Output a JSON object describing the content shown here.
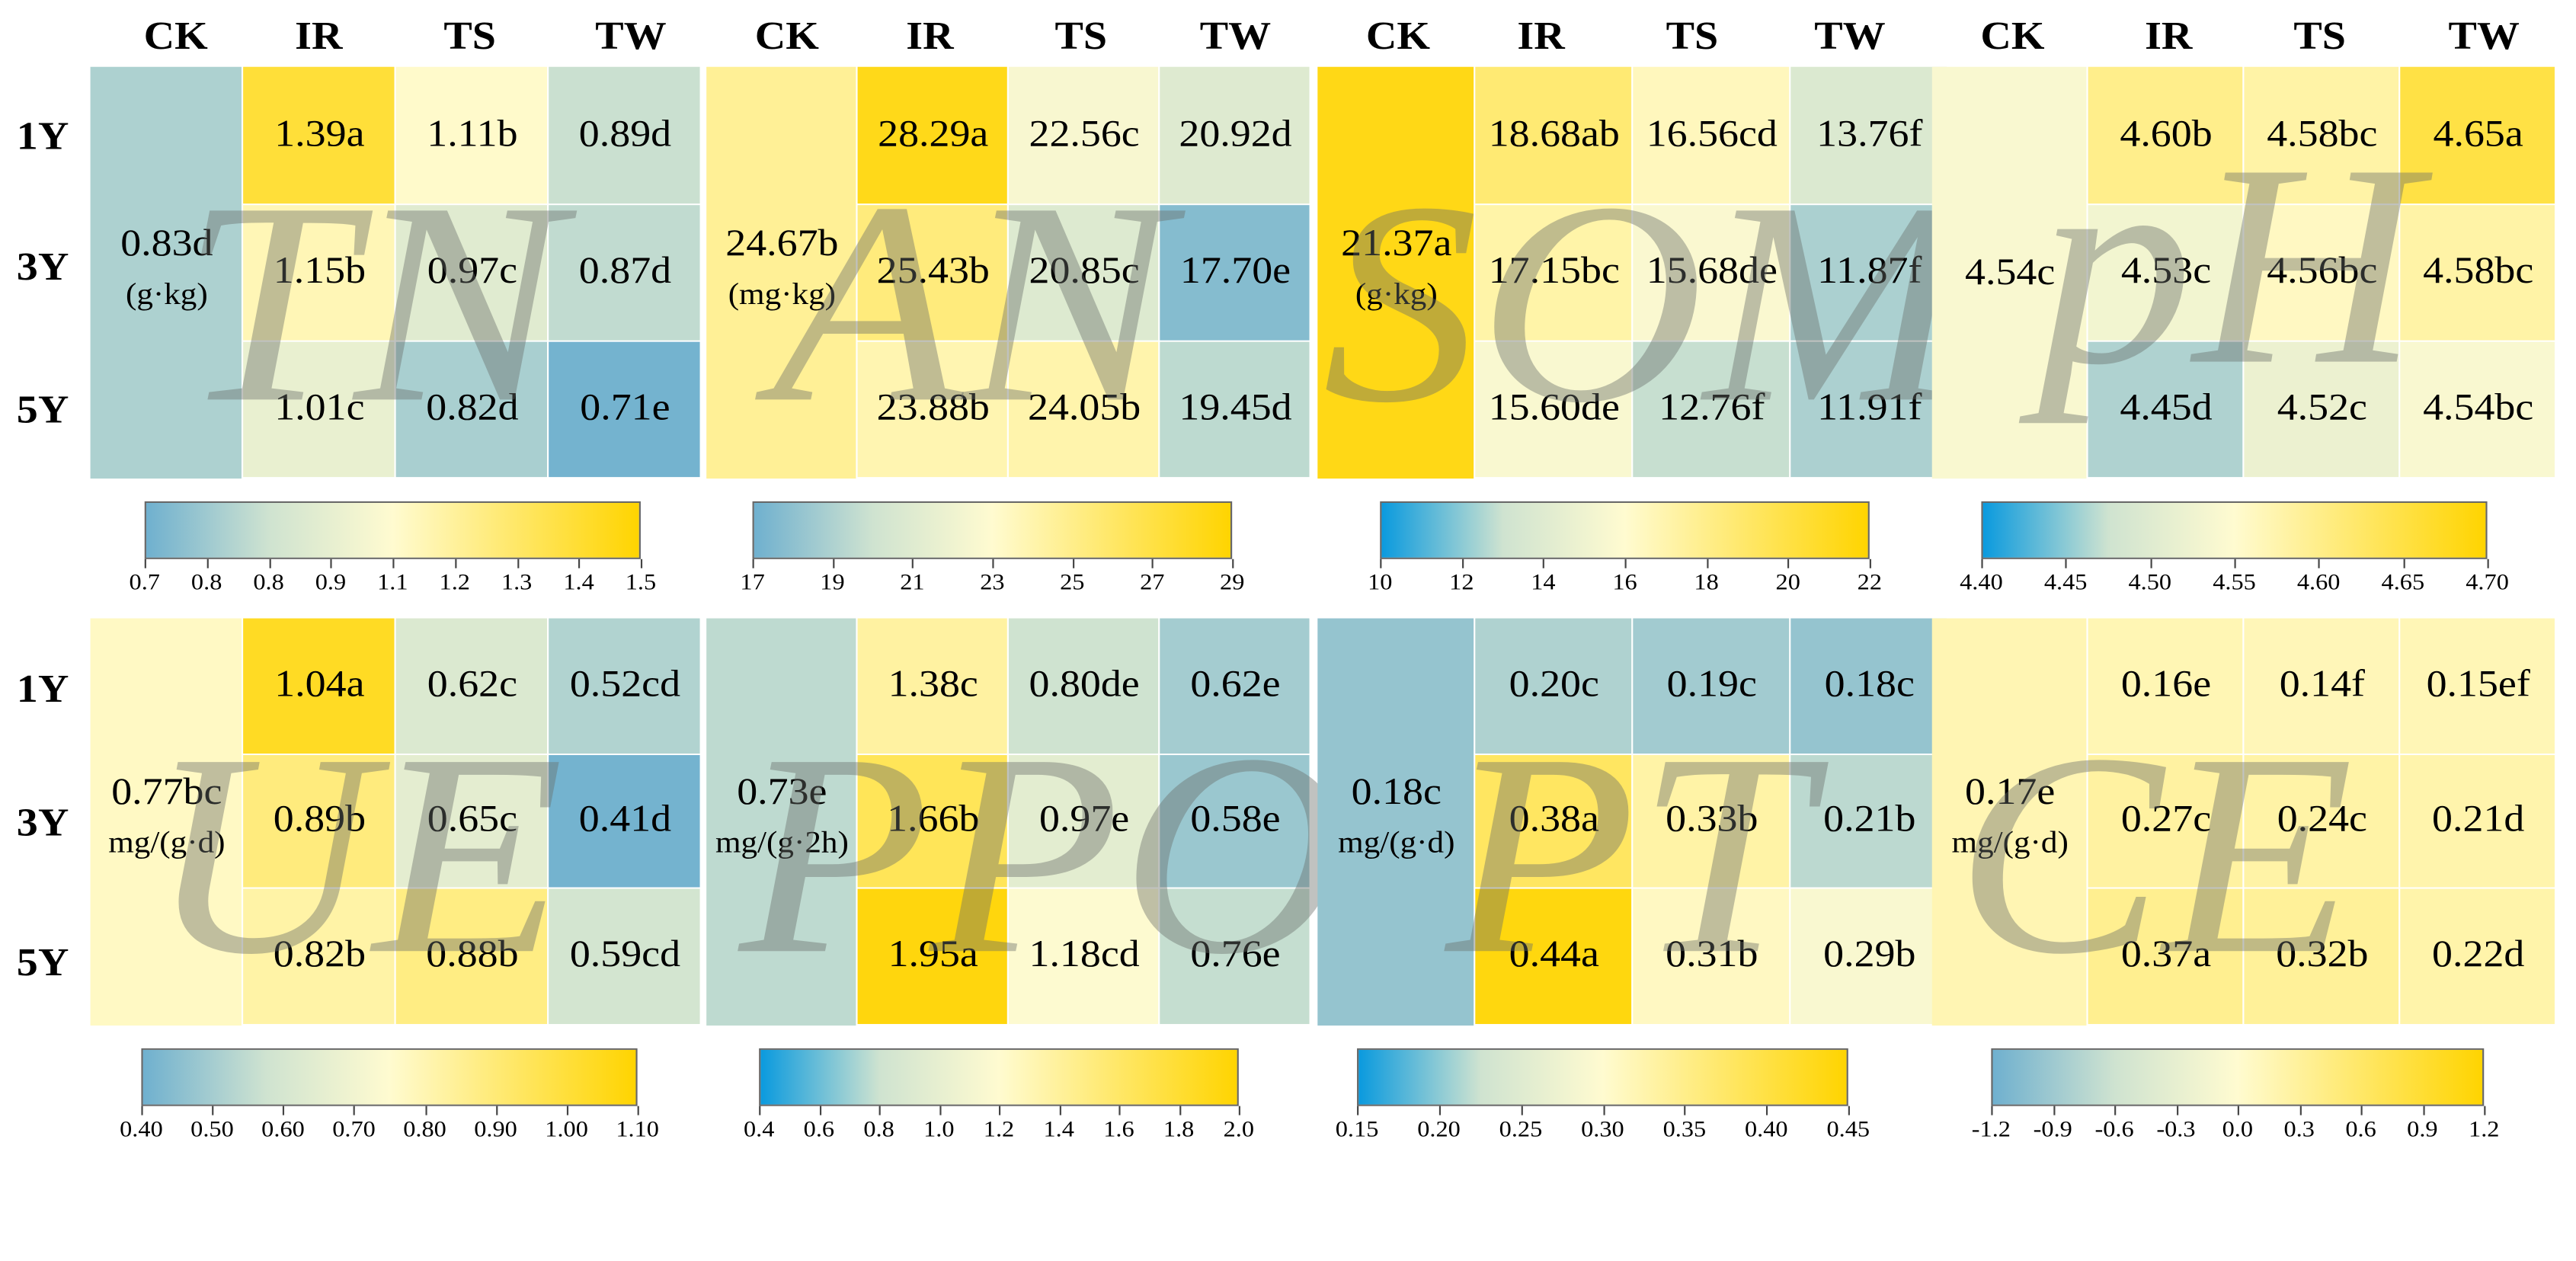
{
  "columns": [
    "CK",
    "IR",
    "TS",
    "TW"
  ],
  "rows": [
    "1Y",
    "3Y",
    "5Y"
  ],
  "colors": {
    "blue": "#6fb0cf",
    "blue_deep": "#0a9ade",
    "pale": "#fffbd0",
    "yellow": "#ffd400",
    "green_mid": "#cfe3d0"
  },
  "chart_data": [
    {
      "type": "heatmap",
      "title": "TN",
      "watermark": "TN",
      "ck": {
        "value": 0.83,
        "label": "0.83d",
        "unit": "(g·kg)"
      },
      "values": [
        [
          1.39,
          1.11,
          0.89
        ],
        [
          1.15,
          0.97,
          0.87
        ],
        [
          1.01,
          0.82,
          0.71
        ]
      ],
      "labels": [
        [
          "1.39a",
          "1.11b",
          "0.89d"
        ],
        [
          "1.15b",
          "0.97c",
          "0.87d"
        ],
        [
          "1.01c",
          "0.82d",
          "0.71e"
        ]
      ],
      "colorbar": {
        "range": [
          0.7,
          1.5
        ],
        "ticks": [
          "0.7",
          "0.8",
          "0.8",
          "0.9",
          "1.1",
          "1.2",
          "1.3",
          "1.4",
          "1.5"
        ]
      }
    },
    {
      "type": "heatmap",
      "title": "AN",
      "watermark": "AN",
      "ck": {
        "value": 24.67,
        "label": "24.67b",
        "unit": "(mg·kg)"
      },
      "values": [
        [
          28.29,
          22.56,
          20.92
        ],
        [
          25.43,
          20.85,
          17.7
        ],
        [
          23.88,
          24.05,
          19.45
        ]
      ],
      "labels": [
        [
          "28.29a",
          "22.56c",
          "20.92d"
        ],
        [
          "25.43b",
          "20.85c",
          "17.70e"
        ],
        [
          "23.88b",
          "24.05b",
          "19.45d"
        ]
      ],
      "colorbar": {
        "range": [
          17,
          29
        ],
        "ticks": [
          "17",
          "19",
          "21",
          "23",
          "25",
          "27",
          "29"
        ]
      }
    },
    {
      "type": "heatmap",
      "title": "SOM",
      "watermark": "SOM",
      "ck": {
        "value": 21.37,
        "label": "21.37a",
        "unit": "(g·kg)"
      },
      "values": [
        [
          18.68,
          16.56,
          13.76
        ],
        [
          17.15,
          15.68,
          11.87
        ],
        [
          15.6,
          12.76,
          11.91
        ]
      ],
      "labels": [
        [
          "18.68ab",
          "16.56cd",
          "13.76f"
        ],
        [
          "17.15bc",
          "15.68de",
          "11.87f"
        ],
        [
          "15.60de",
          "12.76f",
          "11.91f"
        ]
      ],
      "colorbar": {
        "range": [
          10,
          22
        ],
        "ticks": [
          "10",
          "12",
          "14",
          "16",
          "18",
          "20",
          "22"
        ]
      }
    },
    {
      "type": "heatmap",
      "title": "pH",
      "watermark": "pH",
      "ck": {
        "value": 4.54,
        "label": "4.54c",
        "unit": ""
      },
      "values": [
        [
          4.6,
          4.58,
          4.65
        ],
        [
          4.53,
          4.56,
          4.58
        ],
        [
          4.45,
          4.52,
          4.54
        ]
      ],
      "labels": [
        [
          "4.60b",
          "4.58bc",
          "4.65a"
        ],
        [
          "4.53c",
          "4.56bc",
          "4.58bc"
        ],
        [
          "4.45d",
          "4.52c",
          "4.54bc"
        ]
      ],
      "colorbar": {
        "range": [
          4.4,
          4.7
        ],
        "ticks": [
          "4.40",
          "4.45",
          "4.50",
          "4.55",
          "4.60",
          "4.65",
          "4.70"
        ]
      }
    },
    {
      "type": "heatmap",
      "title": "UE",
      "watermark": "UE",
      "ck": {
        "value": 0.77,
        "label": "0.77bc",
        "unit": "mg/(g·d)"
      },
      "values": [
        [
          1.04,
          0.62,
          0.52
        ],
        [
          0.89,
          0.65,
          0.41
        ],
        [
          0.82,
          0.88,
          0.59
        ]
      ],
      "labels": [
        [
          "1.04a",
          "0.62c",
          "0.52cd"
        ],
        [
          "0.89b",
          "0.65c",
          "0.41d"
        ],
        [
          "0.82b",
          "0.88b",
          "0.59cd"
        ]
      ],
      "colorbar": {
        "range": [
          0.4,
          1.1
        ],
        "ticks": [
          "0.40",
          "0.50",
          "0.60",
          "0.70",
          "0.80",
          "0.90",
          "1.00",
          "1.10"
        ]
      }
    },
    {
      "type": "heatmap",
      "title": "PPO",
      "watermark": "PPO",
      "ck": {
        "value": 0.73,
        "label": "0.73e",
        "unit": "mg/(g·2h)"
      },
      "values": [
        [
          1.38,
          0.8,
          0.62
        ],
        [
          1.66,
          0.97,
          0.58
        ],
        [
          1.95,
          1.18,
          0.76
        ]
      ],
      "labels": [
        [
          "1.38c",
          "0.80de",
          "0.62e"
        ],
        [
          "1.66b",
          "0.97e",
          "0.58e"
        ],
        [
          "1.95a",
          "1.18cd",
          "0.76e"
        ]
      ],
      "colorbar": {
        "range": [
          0.4,
          2.0
        ],
        "ticks": [
          "0.4",
          "0.6",
          "0.8",
          "1.0",
          "1.2",
          "1.4",
          "1.6",
          "1.8",
          "2.0"
        ]
      }
    },
    {
      "type": "heatmap",
      "title": "PT",
      "watermark": "PT",
      "ck": {
        "value": 0.18,
        "label": "0.18c",
        "unit": "mg/(g·d)"
      },
      "values": [
        [
          0.2,
          0.19,
          0.18
        ],
        [
          0.38,
          0.33,
          0.21
        ],
        [
          0.44,
          0.31,
          0.29
        ]
      ],
      "labels": [
        [
          "0.20c",
          "0.19c",
          "0.18c"
        ],
        [
          "0.38a",
          "0.33b",
          "0.21b"
        ],
        [
          "0.44a",
          "0.31b",
          "0.29b"
        ]
      ],
      "colorbar": {
        "range": [
          0.15,
          0.45
        ],
        "ticks": [
          "0.15",
          "0.20",
          "0.25",
          "0.30",
          "0.35",
          "0.40",
          "0.45"
        ]
      }
    },
    {
      "type": "heatmap",
      "title": "CE",
      "watermark": "CE",
      "ck": {
        "value": 0.17,
        "label": "0.17e",
        "unit": "mg/(g·d)"
      },
      "values": [
        [
          0.16,
          0.14,
          0.15
        ],
        [
          0.27,
          0.24,
          0.21
        ],
        [
          0.37,
          0.32,
          0.22
        ]
      ],
      "labels": [
        [
          "0.16e",
          "0.14f",
          "0.15ef"
        ],
        [
          "0.27c",
          "0.24c",
          "0.21d"
        ],
        [
          "0.37a",
          "0.32b",
          "0.22d"
        ]
      ],
      "colorbar": {
        "range": [
          -1.2,
          1.2
        ],
        "ticks": [
          "-1.2",
          "-0.9",
          "-0.6",
          "-0.3",
          "0.0",
          "0.3",
          "0.6",
          "0.9",
          "1.2"
        ]
      }
    }
  ]
}
